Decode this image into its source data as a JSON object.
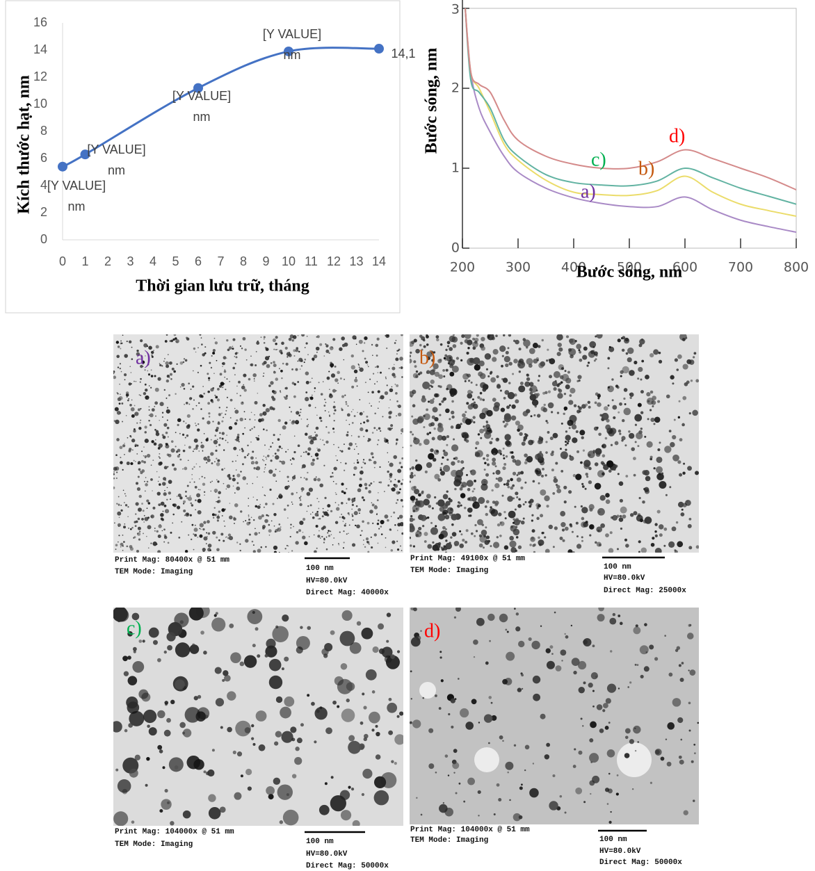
{
  "chart_data": [
    {
      "type": "line",
      "y_label": "Kích thước hạt, nm",
      "x_label": "Thời gian lưu trữ, tháng",
      "x": [
        0,
        1,
        6,
        10,
        14
      ],
      "values": [
        5.4,
        6.3,
        11.2,
        13.9,
        14.1
      ],
      "value_labels": [
        "[Y VALUE]\nnm",
        "[Y VALUE]\nnm",
        "[Y VALUE]\nnm",
        "[Y VALUE]\nnm",
        "14,1"
      ],
      "color": "#4472c4",
      "xlim": [
        0,
        14
      ],
      "xticks": [
        0,
        1,
        2,
        3,
        4,
        5,
        6,
        7,
        8,
        9,
        10,
        11,
        12,
        13,
        14
      ],
      "ylim": [
        0,
        16
      ],
      "yticks": [
        0,
        2,
        4,
        6,
        8,
        10,
        12,
        14,
        16
      ]
    },
    {
      "type": "line",
      "y_label": "Bước sóng, nm",
      "x_label": "Bước sóng, nm",
      "x": [
        205,
        215,
        230,
        250,
        275,
        300,
        350,
        400,
        450,
        500,
        550,
        600,
        650,
        700,
        750,
        800
      ],
      "xlim": [
        200,
        800
      ],
      "xticks": [
        200,
        300,
        400,
        500,
        600,
        700,
        800
      ],
      "ylim": [
        0,
        3
      ],
      "yticks": [
        0,
        1,
        2,
        3
      ],
      "series": [
        {
          "name": "a)",
          "color": "#a98ac6",
          "label_color": "#7030a0",
          "values": [
            3.0,
            2.2,
            1.75,
            1.45,
            1.15,
            0.95,
            0.75,
            0.63,
            0.56,
            0.52,
            0.52,
            0.64,
            0.48,
            0.35,
            0.27,
            0.2
          ]
        },
        {
          "name": "b)",
          "color": "#ebdc6a",
          "label_color": "#c55a11",
          "values": [
            3.0,
            2.2,
            2.0,
            1.7,
            1.3,
            1.1,
            0.85,
            0.7,
            0.67,
            0.66,
            0.72,
            0.9,
            0.7,
            0.55,
            0.47,
            0.4
          ]
        },
        {
          "name": "c)",
          "color": "#62b3a2",
          "label_color": "#00b050",
          "values": [
            3.0,
            2.1,
            1.95,
            1.75,
            1.35,
            1.15,
            0.92,
            0.82,
            0.79,
            0.78,
            0.84,
            1.0,
            0.88,
            0.75,
            0.65,
            0.55
          ]
        },
        {
          "name": "d)",
          "color": "#d48a8a",
          "label_color": "#ff0000",
          "values": [
            3.0,
            2.2,
            2.05,
            1.95,
            1.6,
            1.35,
            1.15,
            1.05,
            1.0,
            1.0,
            1.08,
            1.23,
            1.12,
            1.0,
            0.88,
            0.73
          ]
        }
      ]
    }
  ],
  "images": [
    {
      "label": "a)",
      "label_color": "#7030a0",
      "print_mag": "Print Mag: 80400x @ 51 mm",
      "tem_mode": "TEM Mode: Imaging",
      "scale": "100 nm",
      "hv": "HV=80.0kV",
      "direct_mag": "Direct Mag: 40000x"
    },
    {
      "label": "b)",
      "label_color": "#c55a11",
      "print_mag": "Print Mag: 49100x @ 51 mm",
      "tem_mode": "TEM Mode: Imaging",
      "scale": "100 nm",
      "hv": "HV=80.0kV",
      "direct_mag": "Direct Mag: 25000x"
    },
    {
      "label": "c)",
      "label_color": "#00b050",
      "print_mag": "Print Mag: 104000x @ 51 mm",
      "tem_mode": "TEM Mode: Imaging",
      "scale": "100 nm",
      "hv": "HV=80.0kV",
      "direct_mag": "Direct Mag: 50000x"
    },
    {
      "label": "d)",
      "label_color": "#ff0000",
      "print_mag": "Print Mag: 104000x @ 51 mm",
      "tem_mode": "TEM Mode: Imaging",
      "scale": "100 nm",
      "hv": "HV=80.0kV",
      "direct_mag": "Direct Mag: 50000x"
    }
  ]
}
